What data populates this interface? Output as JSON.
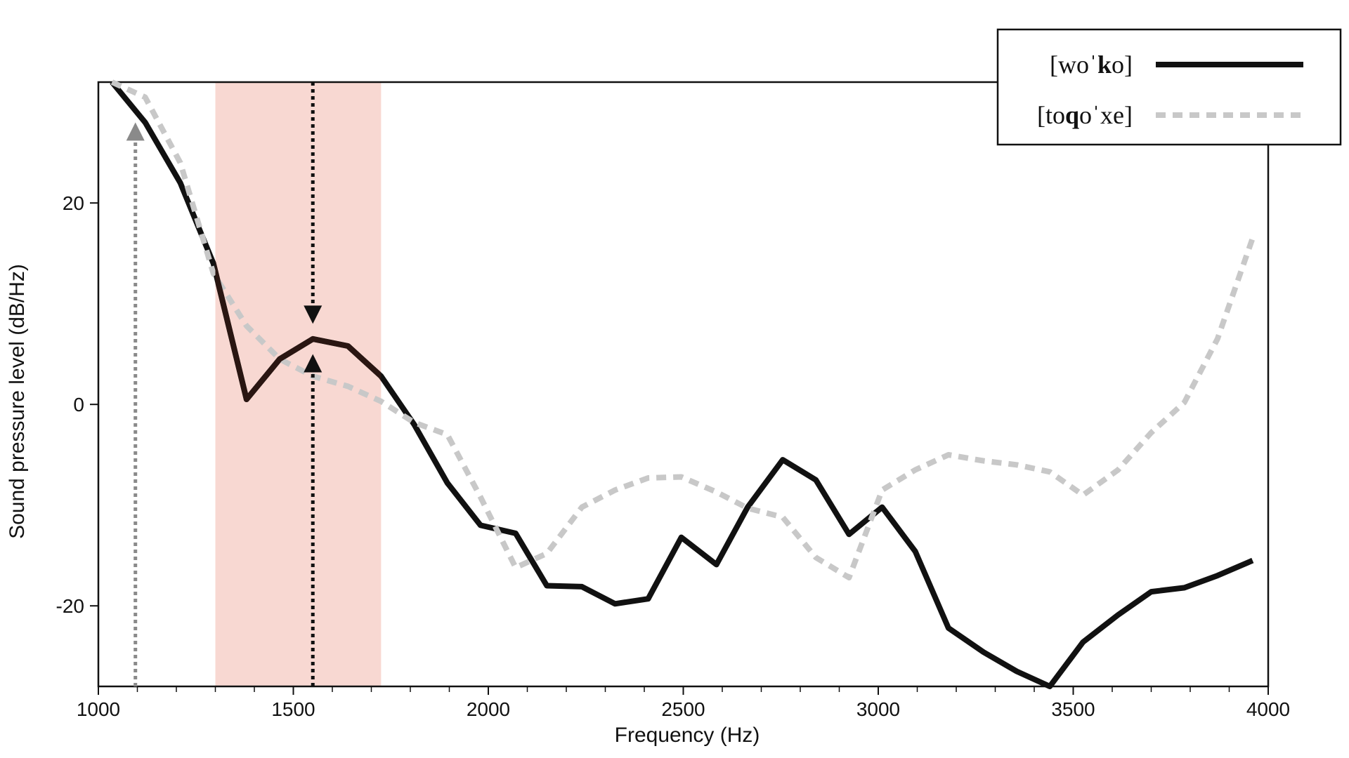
{
  "chart_data": {
    "type": "line",
    "xlabel": "Frequency (Hz)",
    "ylabel": "Sound pressure level (dB/Hz)",
    "xlim": [
      1000,
      4000
    ],
    "ylim": [
      -28,
      32
    ],
    "x_ticks": [
      1000,
      1500,
      2000,
      2500,
      3000,
      3500,
      4000
    ],
    "y_ticks": [
      -20,
      0,
      20
    ],
    "grid": false,
    "legend_position": "top-right",
    "highlight_band": {
      "x_start": 1300,
      "x_end": 1725,
      "color": "#f8d8d2"
    },
    "arrows": [
      {
        "x": 1095,
        "y_from": -28,
        "y_to": 28,
        "direction": "up",
        "style": "dotted",
        "color": "#8a8a8a"
      },
      {
        "x": 1550,
        "y_from": 32,
        "y_to": 8,
        "direction": "down",
        "style": "dotted",
        "color": "#111111"
      },
      {
        "x": 1550,
        "y_from": -28,
        "y_to": 5,
        "direction": "up",
        "style": "dotted",
        "color": "#111111"
      }
    ],
    "series": [
      {
        "name_plain": "[woˈ",
        "name_bold": "k",
        "name_suffix": "o]",
        "color": "#111111",
        "style": "solid",
        "x": [
          1035,
          1120,
          1210,
          1295,
          1380,
          1465,
          1550,
          1640,
          1725,
          1810,
          1895,
          1980,
          2070,
          2150,
          2240,
          2325,
          2410,
          2495,
          2585,
          2665,
          2755,
          2840,
          2925,
          3010,
          3095,
          3180,
          3270,
          3355,
          3440,
          3525,
          3615,
          3700,
          3785,
          3870,
          3960
        ],
        "y": [
          32,
          28,
          22,
          14,
          0.5,
          4.5,
          6.5,
          5.8,
          2.8,
          -2,
          -7.8,
          -12,
          -12.8,
          -18,
          -18.1,
          -19.8,
          -19.3,
          -13.2,
          -15.9,
          -10.2,
          -5.5,
          -7.5,
          -12.9,
          -10.2,
          -14.6,
          -22.2,
          -24.6,
          -26.5,
          -28,
          -23.6,
          -20.9,
          -18.6,
          -18.2,
          -17,
          -15.5
        ]
      },
      {
        "name_plain": "[to",
        "name_bold": "q",
        "name_suffix": "oˈxe]",
        "color": "#c8c8c8",
        "style": "dashed",
        "x": [
          1035,
          1120,
          1210,
          1295,
          1380,
          1465,
          1550,
          1640,
          1725,
          1810,
          1895,
          1980,
          2070,
          2150,
          2240,
          2325,
          2410,
          2495,
          2585,
          2665,
          2755,
          2840,
          2925,
          3010,
          3095,
          3180,
          3270,
          3355,
          3440,
          3525,
          3615,
          3700,
          3785,
          3870,
          3960
        ],
        "y": [
          32,
          30.5,
          24,
          13,
          7.8,
          4.5,
          2.8,
          1.8,
          0.3,
          -1.8,
          -3,
          -9.2,
          -16.2,
          -14.8,
          -10.2,
          -8.5,
          -7.3,
          -7.2,
          -8.7,
          -10.3,
          -11.2,
          -15.2,
          -17.2,
          -8.5,
          -6.5,
          -5,
          -5.6,
          -6,
          -6.7,
          -9,
          -6.5,
          -2.8,
          0.2,
          6.5,
          16.5
        ]
      }
    ]
  }
}
